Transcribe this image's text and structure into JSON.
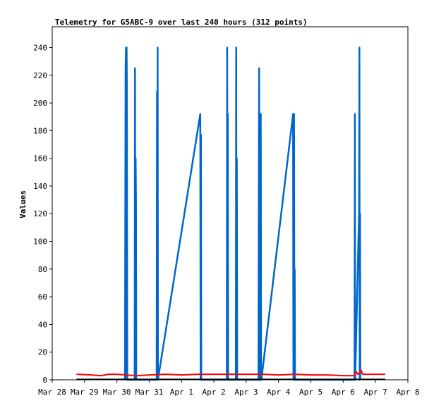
{
  "chart_data": {
    "type": "line",
    "title": "Telemetry for G5ABC-9 over last 240 hours (312 points)",
    "ylabel": "Values",
    "xlabel": "",
    "x_ticks": [
      "Mar 28",
      "Mar 29",
      "Mar 30",
      "Mar 31",
      "Apr 1",
      "Apr 2",
      "Apr 3",
      "Apr 4",
      "Apr 5",
      "Apr 6",
      "Apr 7",
      "Apr 8"
    ],
    "y_ticks": [
      0,
      20,
      40,
      60,
      80,
      100,
      120,
      140,
      160,
      180,
      200,
      220,
      240
    ],
    "ylim": [
      0,
      255
    ],
    "xlim_days": [
      0,
      11
    ],
    "grid": false,
    "legend": "none",
    "series": [
      {
        "color": "#0066cc",
        "points": [
          [
            2.25,
            0
          ],
          [
            2.27,
            225
          ],
          [
            2.28,
            240
          ],
          [
            2.29,
            0
          ],
          [
            2.3,
            240
          ],
          [
            2.31,
            208
          ],
          [
            2.32,
            0
          ],
          [
            2.55,
            0
          ],
          [
            2.56,
            225
          ],
          [
            2.57,
            0
          ],
          [
            2.58,
            160
          ],
          [
            2.59,
            128
          ],
          [
            2.6,
            0
          ],
          [
            3.23,
            0
          ],
          [
            3.24,
            208
          ],
          [
            3.25,
            0
          ],
          [
            3.26,
            240
          ],
          [
            3.27,
            0
          ],
          [
            4.58,
            192
          ],
          [
            4.59,
            0
          ],
          [
            4.6,
            177
          ],
          [
            4.61,
            0
          ],
          [
            5.4,
            0
          ],
          [
            5.41,
            240
          ],
          [
            5.42,
            0
          ],
          [
            5.43,
            192
          ],
          [
            5.44,
            0
          ],
          [
            5.68,
            0
          ],
          [
            5.69,
            240
          ],
          [
            5.7,
            0
          ],
          [
            5.71,
            160
          ],
          [
            5.72,
            0
          ],
          [
            6.38,
            0
          ],
          [
            6.39,
            138
          ],
          [
            6.4,
            225
          ],
          [
            6.41,
            0
          ],
          [
            6.42,
            160
          ],
          [
            6.43,
            0
          ],
          [
            6.44,
            192
          ],
          [
            6.45,
            192
          ],
          [
            6.46,
            0
          ],
          [
            6.47,
            0
          ],
          [
            7.45,
            192
          ],
          [
            7.46,
            0
          ],
          [
            7.47,
            32
          ],
          [
            7.48,
            192
          ],
          [
            7.49,
            0
          ],
          [
            7.5,
            80
          ],
          [
            7.51,
            0
          ],
          [
            9.35,
            0
          ],
          [
            9.36,
            192
          ],
          [
            9.37,
            0
          ],
          [
            9.49,
            120
          ],
          [
            9.5,
            240
          ],
          [
            9.51,
            0
          ],
          [
            9.52,
            120
          ],
          [
            9.53,
            0
          ]
        ]
      },
      {
        "color": "#ff0000",
        "points": [
          [
            0.75,
            4
          ],
          [
            1.2,
            3.5
          ],
          [
            1.5,
            3
          ],
          [
            1.75,
            4
          ],
          [
            2.0,
            4
          ],
          [
            2.3,
            3.5
          ],
          [
            2.6,
            3
          ],
          [
            3.0,
            3.5
          ],
          [
            3.5,
            4
          ],
          [
            4.0,
            3.5
          ],
          [
            4.5,
            4
          ],
          [
            5.0,
            4
          ],
          [
            5.5,
            4
          ],
          [
            6.0,
            4
          ],
          [
            6.5,
            4
          ],
          [
            7.0,
            3.5
          ],
          [
            7.5,
            4
          ],
          [
            8.0,
            3.5
          ],
          [
            8.5,
            3.5
          ],
          [
            9.0,
            3
          ],
          [
            9.35,
            3
          ],
          [
            9.4,
            6
          ],
          [
            9.45,
            4
          ],
          [
            9.5,
            5
          ],
          [
            9.55,
            7
          ],
          [
            9.6,
            4
          ],
          [
            9.8,
            4
          ],
          [
            10.3,
            4
          ]
        ]
      },
      {
        "color": "#000000",
        "points": [
          [
            0.75,
            0.3
          ],
          [
            10.3,
            0.3
          ]
        ]
      }
    ]
  }
}
